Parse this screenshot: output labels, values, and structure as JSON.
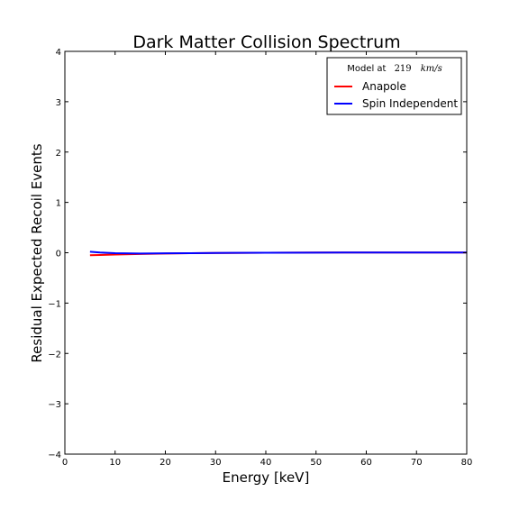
{
  "chart_data": {
    "type": "line",
    "title": "Dark Matter Collision Spectrum",
    "xlabel": "Energy [keV]",
    "ylabel": "Residual Expected Recoil Events",
    "xlim": [
      0,
      80
    ],
    "ylim": [
      -4,
      4
    ],
    "xticks": [
      "0",
      "10",
      "20",
      "30",
      "40",
      "50",
      "60",
      "70",
      "80"
    ],
    "yticks": [
      "4",
      "3",
      "2",
      "1",
      "0",
      "−1",
      "−2",
      "−3",
      "−4"
    ],
    "grid": false,
    "legend": {
      "placement": "top-right",
      "title_prefix": "Model at",
      "title_value": "219",
      "title_unit": "km/s"
    },
    "series": [
      {
        "name": "Anapole",
        "color": "#ff0000",
        "x": [
          5,
          7,
          10,
          15,
          20,
          25,
          30,
          40,
          50,
          60,
          70,
          80
        ],
        "y": [
          -0.05,
          -0.045,
          -0.035,
          -0.025,
          -0.015,
          -0.01,
          -0.005,
          0.0,
          0.005,
          0.005,
          0.005,
          0.005
        ]
      },
      {
        "name": "Spin Independent",
        "color": "#0000ff",
        "x": [
          5,
          7,
          10,
          15,
          20,
          25,
          30,
          40,
          50,
          60,
          70,
          80
        ],
        "y": [
          0.02,
          0.005,
          -0.01,
          -0.015,
          -0.012,
          -0.008,
          -0.004,
          0.0,
          0.003,
          0.004,
          0.004,
          0.004
        ]
      }
    ]
  }
}
